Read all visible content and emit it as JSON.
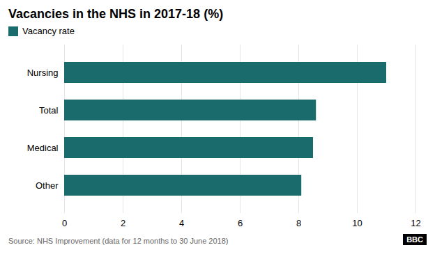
{
  "chart_data": {
    "type": "bar",
    "title": "Vacancies in the NHS in 2017-18 (%)",
    "orientation": "horizontal",
    "categories": [
      "Nursing",
      "Total",
      "Medical",
      "Other"
    ],
    "series": [
      {
        "name": "Vacancy rate",
        "color": "#1a6b6b",
        "values": [
          11.0,
          8.6,
          8.5,
          8.1
        ]
      }
    ],
    "xlim": [
      0,
      12
    ],
    "xticks": [
      0,
      2,
      4,
      6,
      8,
      10,
      12
    ],
    "grid": true,
    "legend": "upper left",
    "annotations": [
      "Source: NHS Improvement (data for 12 months to 30 June 2018)",
      "BBC"
    ]
  }
}
